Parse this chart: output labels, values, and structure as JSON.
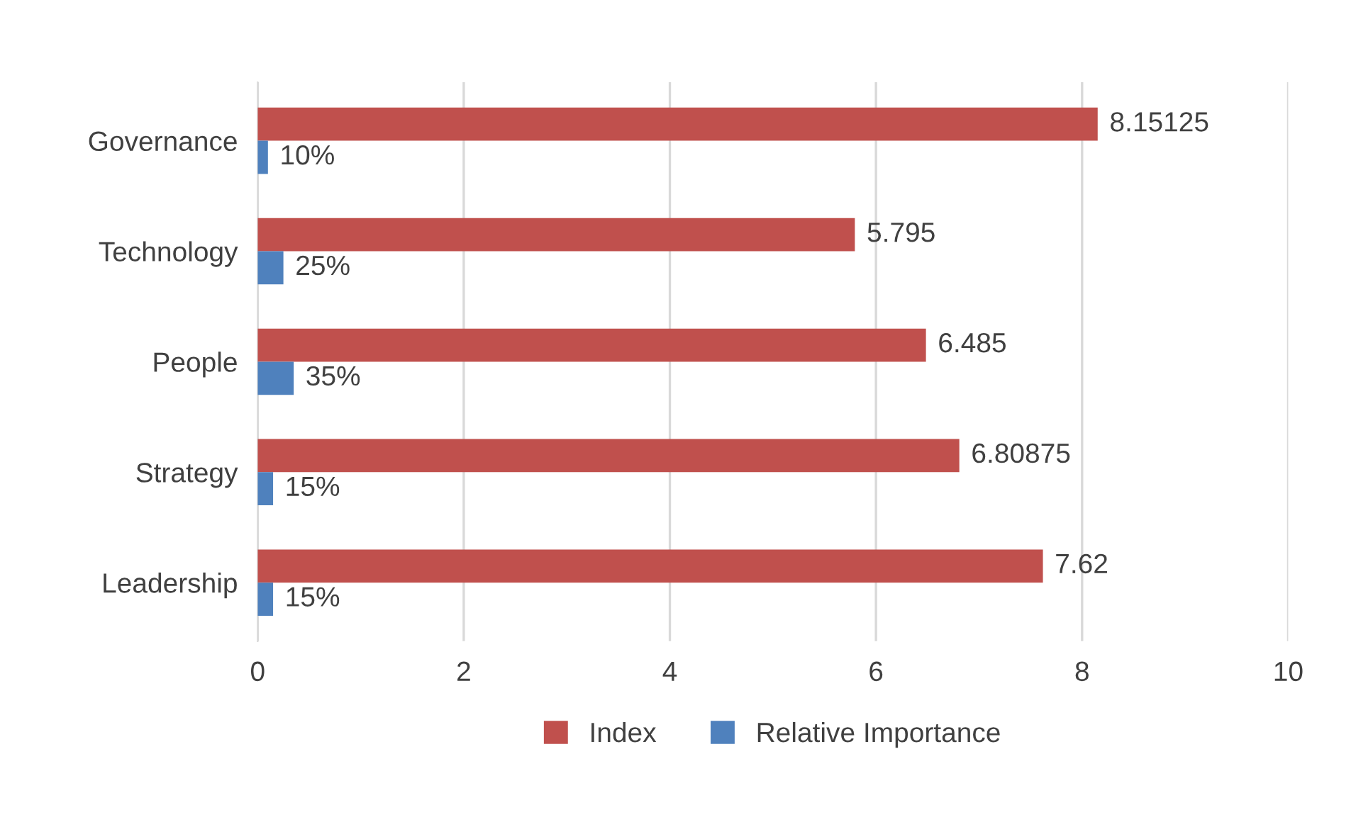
{
  "chart_data": {
    "type": "bar",
    "orientation": "horizontal",
    "categories": [
      "Governance",
      "Technology",
      "People",
      "Strategy",
      "Leadership"
    ],
    "series": [
      {
        "name": "Index",
        "color": "#c0504d",
        "values": [
          8.15125,
          5.795,
          6.485,
          6.80875,
          7.62
        ],
        "value_labels": [
          "8.15125",
          "5.795",
          "6.485",
          "6.80875",
          "7.62"
        ]
      },
      {
        "name": "Relative Importance",
        "color": "#4f81bd",
        "values": [
          0.1,
          0.25,
          0.35,
          0.15,
          0.15
        ],
        "value_labels": [
          "10%",
          "25%",
          "35%",
          "15%",
          "15%"
        ]
      }
    ],
    "xlim": [
      0,
      10
    ],
    "xticks": [
      0,
      2,
      4,
      6,
      8,
      10
    ],
    "grid": "x",
    "legend": "bottom"
  }
}
